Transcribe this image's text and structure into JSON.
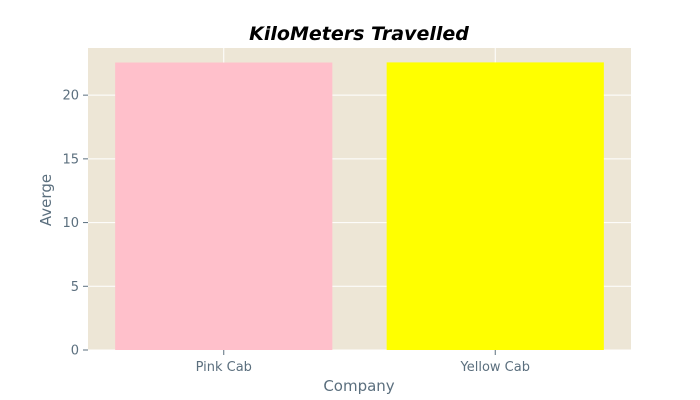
{
  "chart_data": {
    "type": "bar",
    "title": "KiloMeters Travelled",
    "xlabel": "Company",
    "ylabel": "Averge",
    "categories": [
      "Pink Cab",
      "Yellow Cab"
    ],
    "values": [
      22.56,
      22.57
    ],
    "bar_colors": [
      "#ffc0cb",
      "#ffff00"
    ],
    "ylim": [
      0,
      23.7
    ],
    "yticks": [
      0,
      5,
      10,
      15,
      20
    ],
    "grid": true,
    "plot_background": "#ede6d6",
    "grid_color": "#ffffff"
  }
}
